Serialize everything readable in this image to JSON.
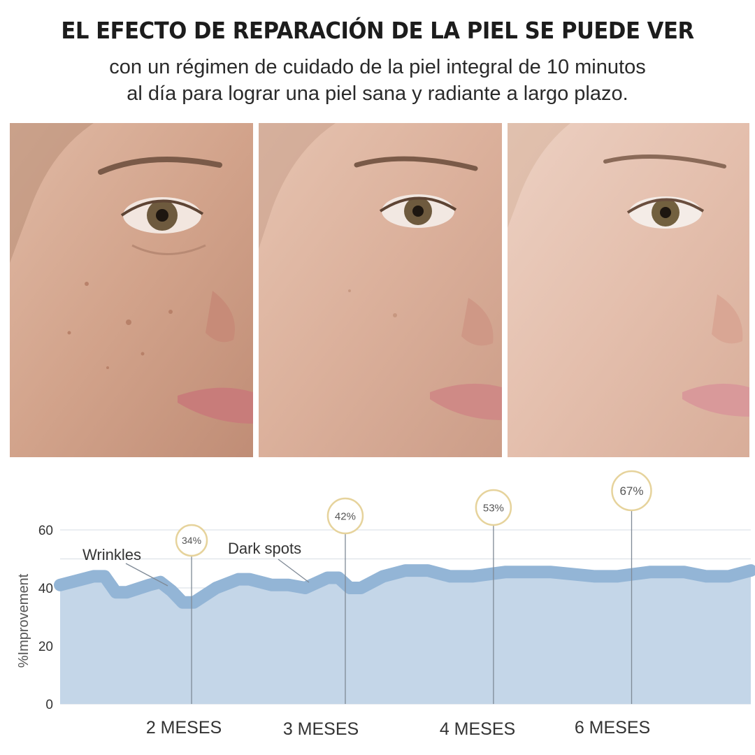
{
  "header": {
    "title": "EL EFECTO DE REPARACIÓN DE LA PIEL SE PUEDE VER",
    "subtitle_line1": "con un régimen de cuidado de la piel integral de 10 minutos",
    "subtitle_line2": "al día para lograr una piel sana y radiante a largo plazo."
  },
  "photos": [
    {
      "stage": "before"
    },
    {
      "stage": "middle"
    },
    {
      "stage": "after"
    }
  ],
  "colors": {
    "area_fill": "#c4d6e8",
    "band": "#93b5d6",
    "grid": "#d7dde4",
    "leader": "#7f8a96",
    "badge_ring": "#e6d39c",
    "text": "#333333"
  },
  "chart_data": {
    "type": "area",
    "ylabel": "%Improvement",
    "ylim": [
      0,
      60
    ],
    "yticks": [
      0,
      20,
      40,
      60
    ],
    "grid": true,
    "categories": [
      "2 MESES",
      "3 MESES",
      "4 MESES",
      "6 MESES"
    ],
    "markers": [
      {
        "category": "2 MESES",
        "label": "34%",
        "value": 34
      },
      {
        "category": "3 MESES",
        "label": "42%",
        "value": 42
      },
      {
        "category": "4 MESES",
        "label": "53%",
        "value": 53
      },
      {
        "category": "6 MESES",
        "label": "67%",
        "value": 67
      }
    ],
    "annotations": [
      {
        "text": "Wrinkles"
      },
      {
        "text": "Dark spots"
      }
    ],
    "series": [
      {
        "points": [
          [
            0,
            41
          ],
          [
            3,
            44
          ],
          [
            4,
            44
          ],
          [
            5,
            38.5
          ],
          [
            6,
            38.5
          ],
          [
            8,
            41
          ],
          [
            9,
            42
          ],
          [
            10,
            39
          ],
          [
            11,
            35
          ],
          [
            12,
            35
          ],
          [
            14,
            40
          ],
          [
            16,
            43
          ],
          [
            17,
            43
          ],
          [
            19,
            41
          ],
          [
            20,
            41
          ],
          [
            20.5,
            41
          ],
          [
            22,
            40
          ],
          [
            24,
            43.5
          ],
          [
            25,
            43.5
          ],
          [
            26,
            40
          ],
          [
            27,
            40
          ],
          [
            29,
            44
          ],
          [
            31,
            46
          ],
          [
            33,
            46
          ],
          [
            35,
            44
          ],
          [
            37,
            44
          ],
          [
            40,
            45.5
          ],
          [
            44,
            45.5
          ],
          [
            48,
            44
          ],
          [
            50,
            44
          ],
          [
            53,
            45.5
          ],
          [
            56,
            45.5
          ],
          [
            58,
            44
          ],
          [
            60,
            44
          ],
          [
            62,
            46
          ]
        ]
      }
    ]
  }
}
